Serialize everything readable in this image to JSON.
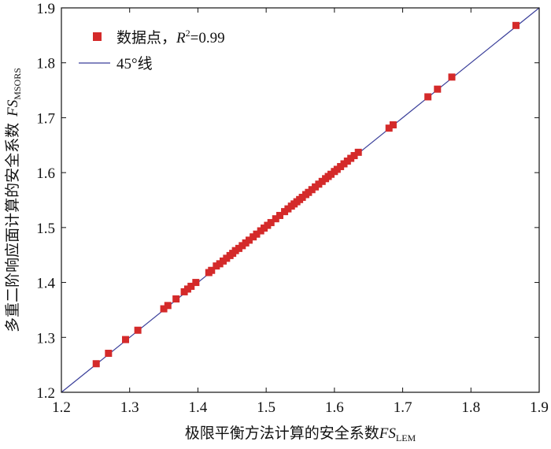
{
  "chart_data": {
    "type": "scatter",
    "xlabel": "极限平衡方法计算的安全系数",
    "xlabel_symbol": "FS",
    "xlabel_subscript": "LEM",
    "ylabel": "多重二阶响应面计算的安全系数",
    "ylabel_symbol": "FS",
    "ylabel_subscript": "MSORS",
    "xlim": [
      1.2,
      1.9
    ],
    "ylim": [
      1.2,
      1.9
    ],
    "x_ticks": [
      "1.2",
      "1.3",
      "1.4",
      "1.5",
      "1.6",
      "1.7",
      "1.8",
      "1.9"
    ],
    "y_ticks": [
      "1.2",
      "1.3",
      "1.4",
      "1.5",
      "1.6",
      "1.7",
      "1.8",
      "1.9"
    ],
    "grid": false,
    "legend_position": "top-left",
    "legend": {
      "points_label": "数据点，",
      "r2_symbol": "R",
      "r2_exponent": "2",
      "r2_value": "=0.99",
      "line_label": "45°线"
    },
    "reference_line": {
      "from": [
        1.2,
        1.2
      ],
      "to": [
        1.9,
        1.9
      ],
      "color": "#3a3f9a"
    },
    "marker_color": "#d42a2a",
    "series": [
      {
        "values": [
          [
            1.251,
            1.252
          ],
          [
            1.269,
            1.271
          ],
          [
            1.294,
            1.296
          ],
          [
            1.312,
            1.313
          ],
          [
            1.35,
            1.352
          ],
          [
            1.356,
            1.358
          ],
          [
            1.368,
            1.37
          ],
          [
            1.38,
            1.383
          ],
          [
            1.385,
            1.388
          ],
          [
            1.39,
            1.393
          ],
          [
            1.397,
            1.4
          ],
          [
            1.416,
            1.418
          ],
          [
            1.42,
            1.422
          ],
          [
            1.427,
            1.43
          ],
          [
            1.432,
            1.434
          ],
          [
            1.437,
            1.439
          ],
          [
            1.442,
            1.444
          ],
          [
            1.447,
            1.449
          ],
          [
            1.451,
            1.453
          ],
          [
            1.455,
            1.458
          ],
          [
            1.46,
            1.462
          ],
          [
            1.465,
            1.467
          ],
          [
            1.47,
            1.472
          ],
          [
            1.475,
            1.477
          ],
          [
            1.481,
            1.483
          ],
          [
            1.486,
            1.488
          ],
          [
            1.492,
            1.494
          ],
          [
            1.497,
            1.499
          ],
          [
            1.502,
            1.504
          ],
          [
            1.507,
            1.509
          ],
          [
            1.514,
            1.516
          ],
          [
            1.52,
            1.522
          ],
          [
            1.527,
            1.529
          ],
          [
            1.532,
            1.534
          ],
          [
            1.537,
            1.539
          ],
          [
            1.541,
            1.543
          ],
          [
            1.545,
            1.547
          ],
          [
            1.549,
            1.551
          ],
          [
            1.553,
            1.555
          ],
          [
            1.558,
            1.56
          ],
          [
            1.562,
            1.564
          ],
          [
            1.567,
            1.569
          ],
          [
            1.572,
            1.574
          ],
          [
            1.577,
            1.579
          ],
          [
            1.582,
            1.584
          ],
          [
            1.587,
            1.589
          ],
          [
            1.591,
            1.593
          ],
          [
            1.595,
            1.597
          ],
          [
            1.6,
            1.602
          ],
          [
            1.604,
            1.606
          ],
          [
            1.609,
            1.611
          ],
          [
            1.614,
            1.616
          ],
          [
            1.619,
            1.621
          ],
          [
            1.624,
            1.626
          ],
          [
            1.629,
            1.631
          ],
          [
            1.635,
            1.637
          ],
          [
            1.68,
            1.681
          ],
          [
            1.686,
            1.687
          ],
          [
            1.737,
            1.738
          ],
          [
            1.751,
            1.752
          ],
          [
            1.772,
            1.774
          ],
          [
            1.866,
            1.868
          ]
        ]
      }
    ]
  }
}
